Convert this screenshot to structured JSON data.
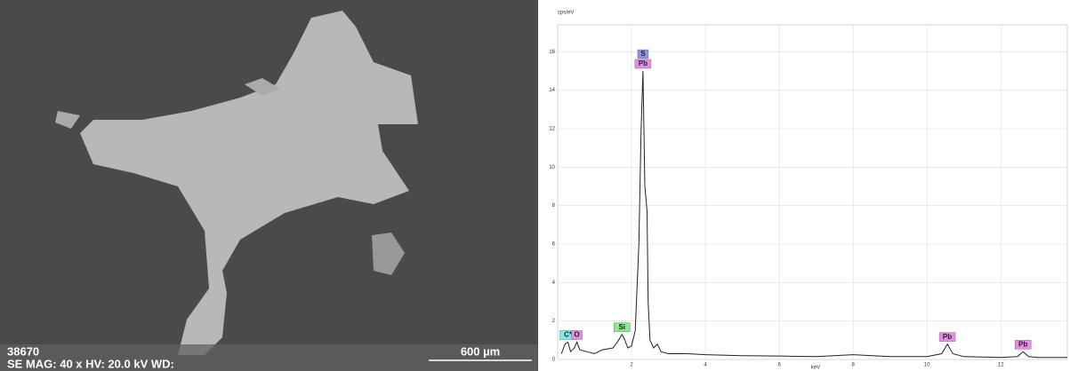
{
  "sem_image": {
    "sample_id": "38670",
    "info": "SE  MAG: 40 x  HV: 20.0 kV  WD:",
    "scale_bar": "600 µm"
  },
  "chart_data": {
    "type": "line",
    "y_label": "cps/eV",
    "x_label": "keV",
    "x": [
      0.1,
      0.2,
      0.28,
      0.35,
      0.45,
      0.52,
      0.6,
      0.8,
      1.0,
      1.2,
      1.5,
      1.65,
      1.74,
      1.8,
      1.9,
      2.0,
      2.1,
      2.2,
      2.26,
      2.31,
      2.36,
      2.42,
      2.45,
      2.5,
      2.6,
      2.7,
      2.8,
      3.0,
      3.5,
      4.0,
      5.0,
      6.0,
      7.0,
      8.0,
      9.0,
      10.0,
      10.4,
      10.55,
      10.7,
      11.0,
      12.0,
      12.45,
      12.6,
      12.75,
      13.0,
      13.8
    ],
    "series": [
      {
        "color": "#222222",
        "values": [
          0.3,
          0.8,
          0.9,
          0.4,
          0.6,
          0.9,
          0.5,
          0.4,
          0.3,
          0.5,
          0.6,
          1.0,
          1.3,
          1.1,
          0.6,
          0.7,
          1.5,
          6,
          12,
          15,
          9,
          7.7,
          3,
          1,
          0.6,
          0.8,
          0.4,
          0.3,
          0.3,
          0.25,
          0.2,
          0.18,
          0.15,
          0.25,
          0.15,
          0.15,
          0.3,
          0.8,
          0.3,
          0.15,
          0.1,
          0.15,
          0.4,
          0.15,
          0.1,
          0.1
        ]
      }
    ],
    "peak_labels": [
      {
        "text": "C*",
        "x": 0.28,
        "color": "#7fe8e8"
      },
      {
        "text": "O",
        "x": 0.52,
        "color": "#e88ae8"
      },
      {
        "text": "Si",
        "x": 1.74,
        "color": "#8fe88f"
      },
      {
        "text": "S",
        "x": 2.31,
        "color": "#8f8fe8"
      },
      {
        "text": "Pb",
        "x": 2.31,
        "color": "#e88ae8"
      },
      {
        "text": "Pb",
        "x": 10.55,
        "color": "#e88ae8"
      },
      {
        "text": "Pb",
        "x": 12.6,
        "color": "#e88ae8"
      }
    ],
    "xlim": [
      0,
      13.8
    ],
    "ylim": [
      0,
      17.4
    ],
    "xticks": [
      2,
      4,
      6,
      8,
      10,
      12
    ],
    "yticks": [
      0,
      2,
      4,
      6,
      8,
      10,
      12,
      14,
      16
    ],
    "grid": true
  }
}
